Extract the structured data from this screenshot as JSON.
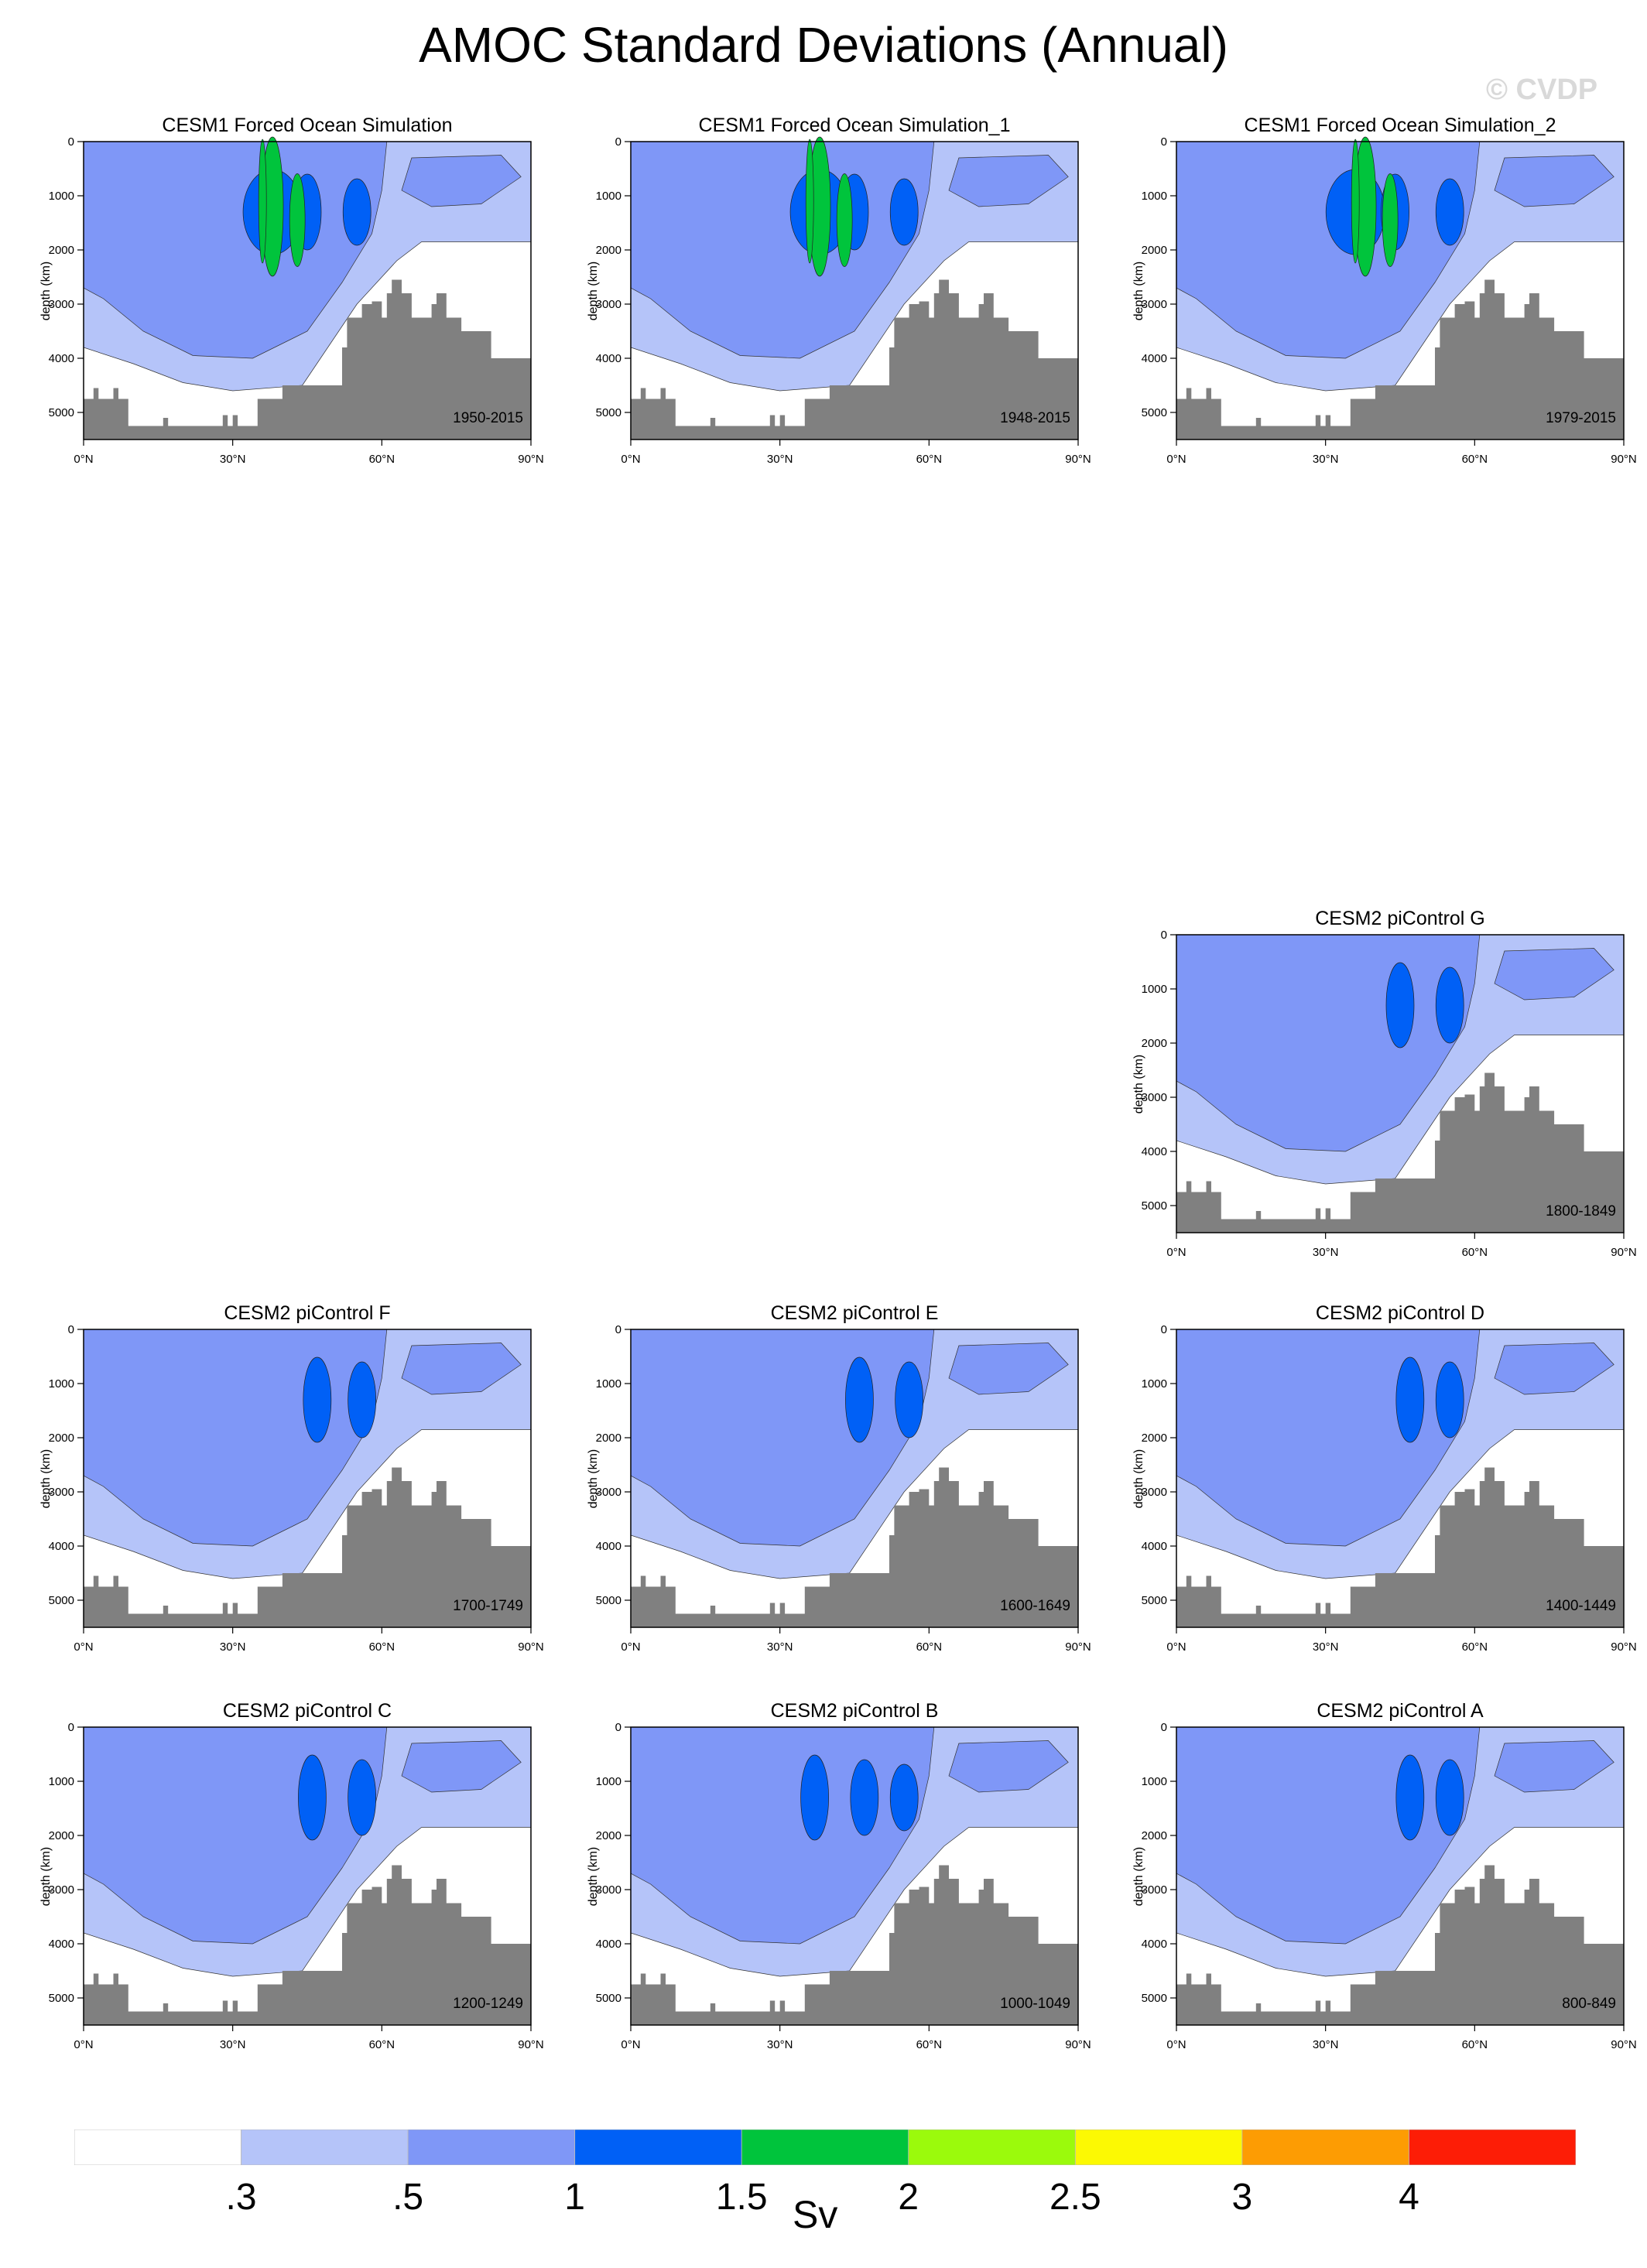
{
  "title": "AMOC Standard Deviations (Annual)",
  "watermark": "© CVDP",
  "ylabel": "depth (km)",
  "chart_data": {
    "type": "contour",
    "grid": false,
    "xlim": [
      0,
      90
    ],
    "ylim": [
      5500,
      0
    ],
    "xticks": [
      0,
      30,
      60,
      90
    ],
    "xtick_labels": [
      "0°N",
      "30°N",
      "60°N",
      "90°N"
    ],
    "yticks": [
      0,
      1000,
      2000,
      3000,
      4000,
      5000
    ],
    "ytick_labels": [
      "0",
      "1000",
      "2000",
      "3000",
      "4000",
      "5000"
    ],
    "levels": [
      0.3,
      0.5,
      1,
      1.5,
      2,
      2.5,
      3,
      4
    ],
    "colorbar_labels": [
      ".3",
      ".5",
      "1",
      "1.5",
      "2",
      "2.5",
      "3",
      "4"
    ],
    "colorbar_units": "Sv",
    "colors": [
      "#ffffff",
      "#b5c4f9",
      "#7f97f7",
      "#0060f6",
      "#00c43c",
      "#9bfa0c",
      "#fcf903",
      "#fd9c03",
      "#fd1d06"
    ],
    "land_color": "#808080",
    "panels": [
      {
        "title": "CESM1 Forced Ocean Simulation",
        "period": "1950-2015",
        "grid_pos": [
          0,
          0
        ],
        "max_level": 2,
        "cores": [
          38,
          45,
          55
        ],
        "peak_lat": 42
      },
      {
        "title": "CESM1 Forced Ocean Simulation_1",
        "period": "1948-2015",
        "grid_pos": [
          0,
          1
        ],
        "max_level": 2,
        "cores": [
          38,
          45,
          55
        ],
        "peak_lat": 42
      },
      {
        "title": "CESM1 Forced Ocean Simulation_2",
        "period": "1979-2015",
        "grid_pos": [
          0,
          2
        ],
        "max_level": 2,
        "cores": [
          36,
          44,
          55
        ],
        "peak_lat": 42
      },
      {
        "title": "CESM2 piControl G",
        "period": "1800-1849",
        "grid_pos": [
          2,
          2
        ],
        "max_level": 1.5,
        "cores": [
          45,
          55
        ],
        "peak_lat": 45
      },
      {
        "title": "CESM2 piControl F",
        "period": "1700-1749",
        "grid_pos": [
          3,
          0
        ],
        "max_level": 1.5,
        "cores": [
          47,
          56
        ],
        "peak_lat": 47
      },
      {
        "title": "CESM2 piControl E",
        "period": "1600-1649",
        "grid_pos": [
          3,
          1
        ],
        "max_level": 1.5,
        "cores": [
          46,
          56
        ],
        "peak_lat": 46
      },
      {
        "title": "CESM2 piControl D",
        "period": "1400-1449",
        "grid_pos": [
          3,
          2
        ],
        "max_level": 1.5,
        "cores": [
          47,
          55
        ],
        "peak_lat": 47
      },
      {
        "title": "CESM2 piControl C",
        "period": "1200-1249",
        "grid_pos": [
          4,
          0
        ],
        "max_level": 1.5,
        "cores": [
          46,
          56
        ],
        "peak_lat": 46
      },
      {
        "title": "CESM2 piControl B",
        "period": "1000-1049",
        "grid_pos": [
          4,
          1
        ],
        "max_level": 1.5,
        "cores": [
          37,
          47,
          55
        ],
        "peak_lat": 47
      },
      {
        "title": "CESM2 piControl A",
        "period": "800-849",
        "grid_pos": [
          4,
          2
        ],
        "max_level": 1.5,
        "cores": [
          47,
          55
        ],
        "peak_lat": 47
      }
    ]
  }
}
